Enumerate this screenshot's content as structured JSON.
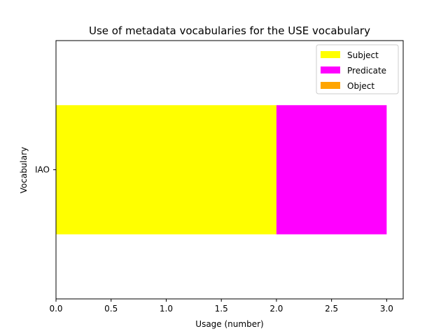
{
  "chart_data": {
    "type": "bar",
    "orientation": "horizontal",
    "stacked": true,
    "title": "Use of metadata vocabularies for the USE vocabulary",
    "xlabel": "Usage (number)",
    "ylabel": "Vocabulary",
    "categories": [
      "IAO"
    ],
    "series": [
      {
        "name": "Subject",
        "values": [
          2
        ],
        "color": "#ffff00"
      },
      {
        "name": "Predicate",
        "values": [
          1
        ],
        "color": "#ff00ff"
      },
      {
        "name": "Object",
        "values": [
          0
        ],
        "color": "#ffa500"
      }
    ],
    "xlim": [
      0,
      3.15
    ],
    "xticks": [
      0,
      0.5,
      1,
      1.5,
      2,
      2.5,
      3
    ],
    "xtick_labels": [
      "0.0",
      "0.5",
      "1.0",
      "1.5",
      "2.0",
      "2.5",
      "3.0"
    ],
    "grid": false,
    "legend": "top-right"
  }
}
